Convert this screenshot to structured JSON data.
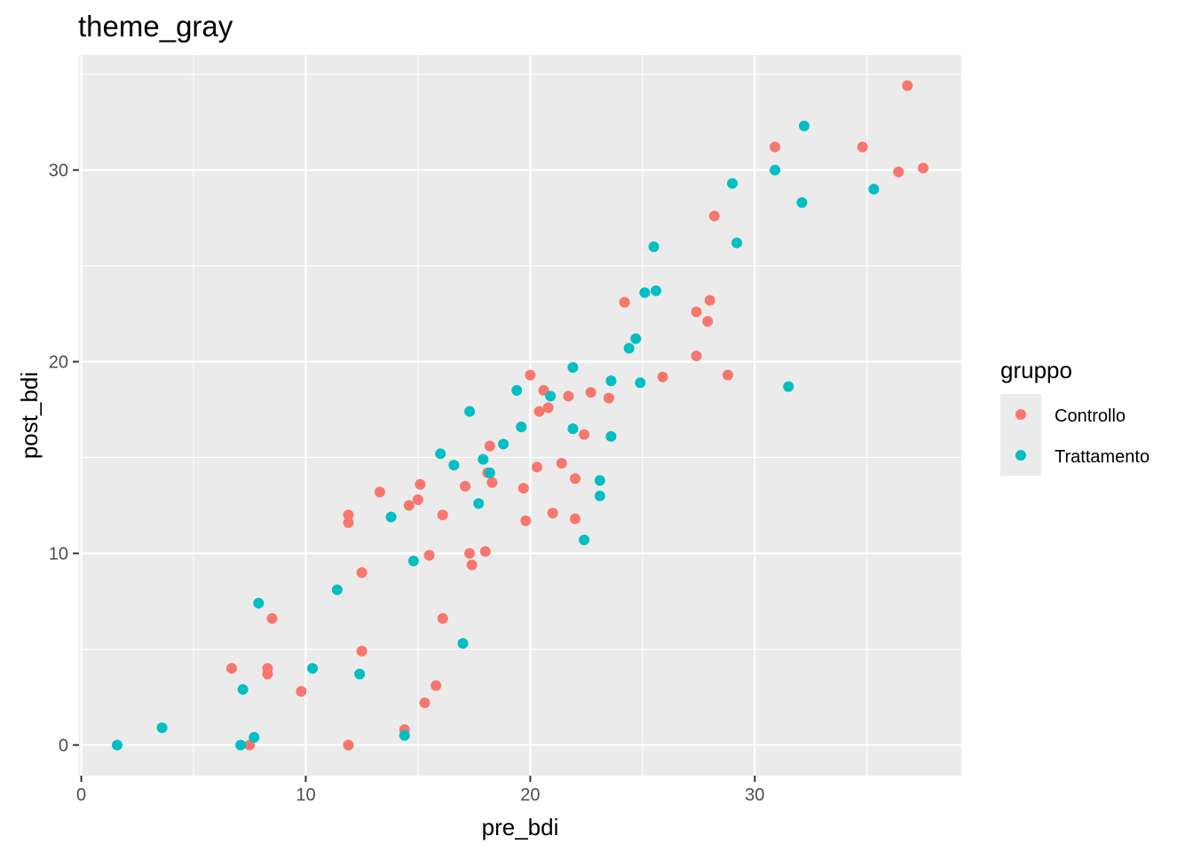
{
  "chart_data": {
    "type": "scatter",
    "title": "theme_gray",
    "xlabel": "pre_bdi",
    "ylabel": "post_bdi",
    "xlim": [
      -0.1,
      39.2
    ],
    "ylim": [
      -1.6,
      36.0
    ],
    "x_ticks": [
      0,
      10,
      20,
      30
    ],
    "y_ticks": [
      0,
      10,
      20,
      30
    ],
    "x_tick_labels": [
      "0",
      "10",
      "20",
      "30"
    ],
    "y_tick_labels": [
      "0",
      "10",
      "20",
      "30"
    ],
    "grid": true,
    "legend": {
      "title": "gruppo",
      "placement": "right"
    },
    "series": [
      {
        "name": "Controllo",
        "color": "#F8766D",
        "points": [
          [
            6.7,
            4.0
          ],
          [
            7.5,
            0.0
          ],
          [
            8.3,
            4.0
          ],
          [
            8.3,
            3.7
          ],
          [
            8.5,
            6.6
          ],
          [
            9.8,
            2.8
          ],
          [
            11.9,
            12.0
          ],
          [
            11.9,
            11.6
          ],
          [
            11.9,
            0.0
          ],
          [
            12.5,
            9.0
          ],
          [
            12.5,
            4.9
          ],
          [
            13.3,
            13.2
          ],
          [
            14.4,
            0.8
          ],
          [
            14.6,
            12.5
          ],
          [
            15.0,
            12.8
          ],
          [
            15.1,
            13.6
          ],
          [
            15.3,
            2.2
          ],
          [
            15.5,
            9.9
          ],
          [
            15.8,
            3.1
          ],
          [
            16.1,
            12.0
          ],
          [
            16.1,
            6.6
          ],
          [
            17.1,
            13.5
          ],
          [
            17.3,
            10.0
          ],
          [
            17.4,
            9.4
          ],
          [
            18.0,
            10.1
          ],
          [
            18.1,
            14.2
          ],
          [
            18.2,
            15.6
          ],
          [
            18.3,
            13.7
          ],
          [
            19.6,
            16.6
          ],
          [
            19.7,
            13.4
          ],
          [
            19.8,
            11.7
          ],
          [
            20.0,
            19.3
          ],
          [
            20.3,
            14.5
          ],
          [
            20.4,
            17.4
          ],
          [
            20.6,
            18.5
          ],
          [
            20.8,
            17.6
          ],
          [
            21.0,
            12.1
          ],
          [
            21.4,
            14.7
          ],
          [
            21.7,
            18.2
          ],
          [
            22.0,
            13.9
          ],
          [
            22.0,
            11.8
          ],
          [
            22.4,
            16.2
          ],
          [
            22.7,
            18.4
          ],
          [
            23.5,
            18.1
          ],
          [
            24.2,
            23.1
          ],
          [
            25.9,
            19.2
          ],
          [
            27.4,
            22.6
          ],
          [
            27.4,
            20.3
          ],
          [
            27.9,
            22.1
          ],
          [
            28.0,
            23.2
          ],
          [
            28.2,
            27.6
          ],
          [
            28.8,
            19.3
          ],
          [
            30.9,
            31.2
          ],
          [
            34.8,
            31.2
          ],
          [
            36.4,
            29.9
          ],
          [
            36.8,
            34.4
          ],
          [
            37.5,
            30.1
          ]
        ]
      },
      {
        "name": "Trattamento",
        "color": "#00BFC4",
        "points": [
          [
            1.6,
            0.0
          ],
          [
            3.6,
            0.9
          ],
          [
            7.1,
            0.0
          ],
          [
            7.2,
            2.9
          ],
          [
            7.7,
            0.4
          ],
          [
            7.9,
            7.4
          ],
          [
            10.3,
            4.0
          ],
          [
            11.4,
            8.1
          ],
          [
            12.4,
            3.7
          ],
          [
            13.8,
            11.9
          ],
          [
            14.4,
            0.5
          ],
          [
            14.8,
            9.6
          ],
          [
            16.0,
            15.2
          ],
          [
            16.6,
            14.6
          ],
          [
            17.0,
            5.3
          ],
          [
            17.3,
            17.4
          ],
          [
            17.7,
            12.6
          ],
          [
            17.9,
            14.9
          ],
          [
            18.2,
            14.2
          ],
          [
            18.8,
            15.7
          ],
          [
            19.4,
            18.5
          ],
          [
            19.6,
            16.6
          ],
          [
            20.9,
            18.2
          ],
          [
            21.9,
            19.7
          ],
          [
            21.9,
            16.5
          ],
          [
            22.4,
            10.7
          ],
          [
            23.1,
            13.8
          ],
          [
            23.1,
            13.0
          ],
          [
            23.6,
            19.0
          ],
          [
            23.6,
            16.1
          ],
          [
            24.4,
            20.7
          ],
          [
            24.7,
            21.2
          ],
          [
            24.9,
            18.9
          ],
          [
            25.1,
            23.6
          ],
          [
            25.5,
            26.0
          ],
          [
            25.6,
            23.7
          ],
          [
            29.0,
            29.3
          ],
          [
            29.2,
            26.2
          ],
          [
            30.9,
            30.0
          ],
          [
            31.5,
            18.7
          ],
          [
            32.1,
            28.3
          ],
          [
            32.2,
            32.3
          ],
          [
            35.3,
            29.0
          ]
        ]
      }
    ]
  }
}
